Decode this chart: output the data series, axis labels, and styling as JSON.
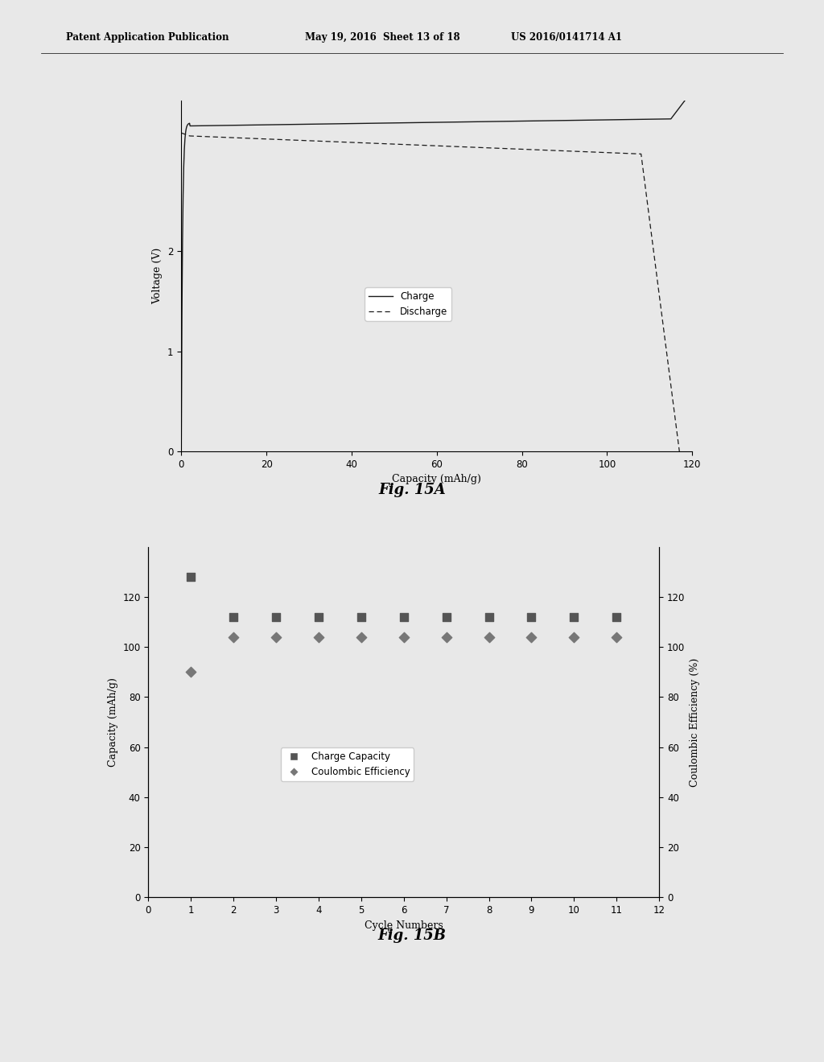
{
  "header_left": "Patent Application Publication",
  "header_mid": "May 19, 2016  Sheet 13 of 18",
  "header_right": "US 2016/0141714 A1",
  "fig15a_title": "Fig. 15A",
  "fig15b_title": "Fig. 15B",
  "fig15a": {
    "xlabel": "Capacity (mAh/g)",
    "ylabel": "Voltage (V)",
    "xlim": [
      0,
      120
    ],
    "ylim": [
      0,
      3.5
    ],
    "xticks": [
      0,
      20,
      40,
      60,
      80,
      100,
      120
    ],
    "yticks": [
      0,
      1,
      2
    ]
  },
  "fig15b": {
    "xlabel": "Cycle Numbers",
    "ylabel_left": "Capacity (mAh/g)",
    "ylabel_right": "Coulombic Efficiency (%)",
    "xlim": [
      0,
      12
    ],
    "ylim_left": [
      0,
      140
    ],
    "ylim_right": [
      0,
      140
    ],
    "xticks": [
      0,
      1,
      2,
      3,
      4,
      5,
      6,
      7,
      8,
      9,
      10,
      11,
      12
    ],
    "yticks_left": [
      0,
      20,
      40,
      60,
      80,
      100,
      120
    ],
    "yticks_right": [
      0,
      20,
      40,
      60,
      80,
      100,
      120
    ],
    "charge_capacity_x": [
      1,
      2,
      3,
      4,
      5,
      6,
      7,
      8,
      9,
      10,
      11
    ],
    "charge_capacity_y": [
      128,
      112,
      112,
      112,
      112,
      112,
      112,
      112,
      112,
      112,
      112
    ],
    "coulombic_x": [
      1,
      2,
      3,
      4,
      5,
      6,
      7,
      8,
      9,
      10,
      11
    ],
    "coulombic_y": [
      90,
      104,
      104,
      104,
      104,
      104,
      104,
      104,
      104,
      104,
      104
    ]
  },
  "bg_color": "#e8e8e8",
  "line_color": "#1a1a1a",
  "marker_sq_color": "#555555",
  "marker_di_color": "#777777"
}
